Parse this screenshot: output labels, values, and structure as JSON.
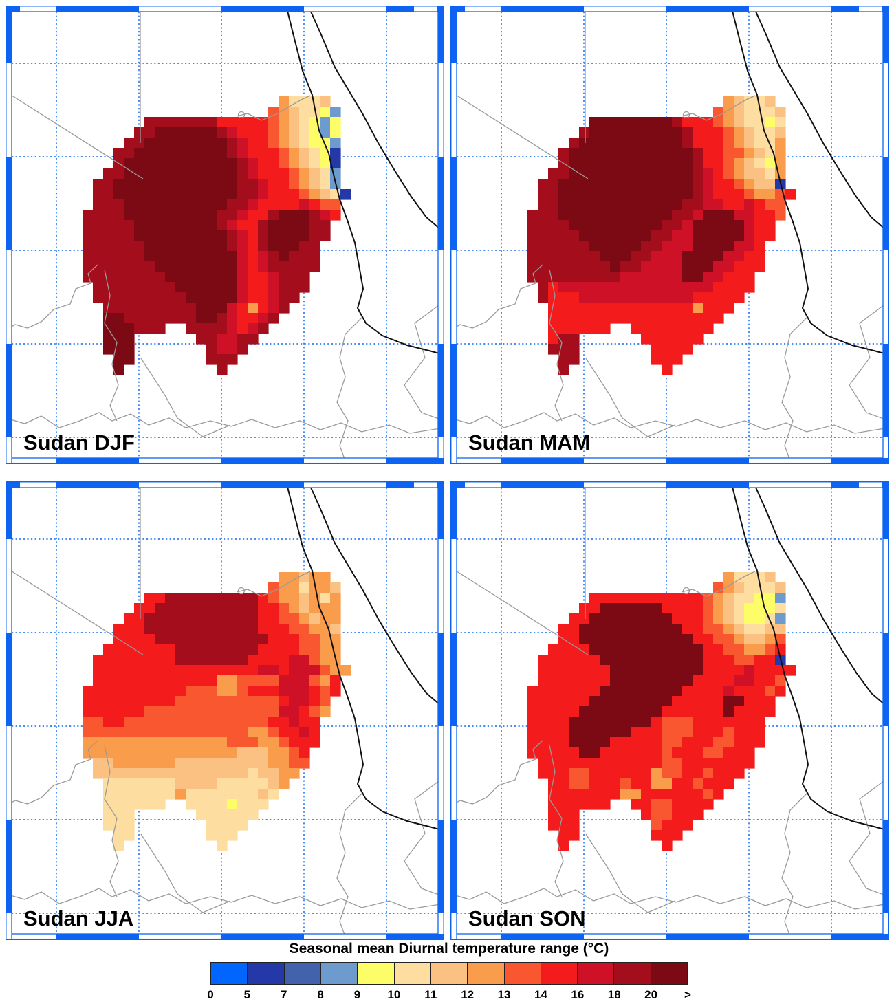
{
  "figure_title": "Seasonal mean Diurnal temperature range (°C)",
  "panels": [
    {
      "id": "djf",
      "label": "Sudan DJF",
      "grid": [
        "...................86667..",
        "..................9876654.",
        "......CCCCCCCAAAAA9876545.",
        ".....CCDDDDDDCBAAA9876545.",
        "....CCDDDDDDDDCBAA9876554.",
        "...CCDDDDDDDDDCBAAA987652.",
        "...CDDDDDDDDDDDCBAA987652.",
        "..CCDDDDDDDDDDDCBAAA98764.",
        ".CCDDDDDDDDDDDDCCBAA98764.",
        ".CCDDDDDDDDDDDDCCBAAA98762",
        ".CCCDDDDDDDDDDCCBAAAABA99.",
        "CCCCDDDDDDDDDCCBAACDDDCBA.",
        "CCCCCDDDDDDDDCBAACDDDDCC..",
        "CCCCCDDDDDDDDDCBACDDDDCC..",
        "CCCCCCDDDDDDDDCBACDDDCC...",
        "CCCCCCDDDDDDDDDBABCDCCC...",
        "CCCCCCCDDDDDDDDBABCCCCC...",
        "CCCCCCCCDDDDDDDBAABCCC....",
        ".CCCCCCCCDDDDDDBAABCCC....",
        ".CCCCCCCCCDDDDDBAABCC.....",
        "..CCCCCCCCCDDDBA8ABC......",
        "..DDCCCCCCCDDCBAABC.......",
        "..DDDCCC..CCCCBABC........",
        "..DDD......CCBBCC.........",
        "..DDD.......CBBC..........",
        "...DD.......CCC...........",
        "...D.........C............"
      ]
    },
    {
      "id": "mam",
      "label": "Sudan MAM",
      "grid": [
        "...................87667..",
        "..................9876667.",
        "......DDDDDDDDCAAA9876656.",
        ".....CDDDDDDDDDCAAA987667.",
        "....CDDDDDDDDDDCAAA987668.",
        "...CDDDDDDDDDDDDCAA998768.",
        "...CDDDDDDDDDDDDCAA987658.",
        "..CCDDDDDDDDDDDDCBA987768.",
        ".CCDDDDDDDDDDDDDCBAA98772.",
        ".CCDDDDDDDDDDDDDCBAAA9889A",
        ".CCDDDDDDDDDDDDCCBBAABA99.",
        "CCCDDDDDDDDDDDCCBDDDBBAA9.",
        "CCCCDDDDDDDDDCCBDDDDDBAA..",
        "CCCCCDDDDDDDCCBBDDDDDBAA..",
        "CCCCCCDDDDDCCBBBDDDDBBA...",
        "CCCCCCCDDDCCBBBDDDDBBAA...",
        "CCCCCCCCDCCBBBBDDDBBAAA...",
        "CCCCCCCCCBBBBBBDDBBAAA....",
        ".CABBBBBBBBBBBBBBBAAAA....",
        ".CAAABBBBBBBBBBBAAAAA.....",
        "..AAAAAAAAAAAAAA8AAA......",
        "..AAAAAAAAAAAAAAAAA.......",
        "..AAAAAA..AAAAAAAA........",
        "..ACC......AAAAAA.........",
        "..CCC.......AAAA..........",
        "...CC.......AAA...........",
        "...C.........A............"
      ]
    },
    {
      "id": "jja",
      "label": "Sudan JJA",
      "grid": [
        "...................88788..",
        "..................9886887.",
        "......AACCCCCCCCCA9887868.",
        ".....AACCCCCCCCCCAA987888.",
        "....AACCCCCCCCCCCAA998788.",
        "...AAACCCCCCCCCCCAAA99887.",
        "...AAAACCCCCCCCCCCAAA9988.",
        "..AAAAAAACCCCCCCCAAAA9988.",
        ".AAAAAAAACCCCCCCAAAABB988.",
        ".AAAAAAAAAAAAAAAABBABBB988",
        ".AAAAAAAAAAAA889999BBB98A.",
        "AAAAAAAAAA999889AAABBBA9A.",
        "AAAAAAAAA9999999999ABBA9..",
        "AAAAAA9999999999999BBA98..",
        "99AA99999999999999AABAA...",
        "9999999999999999889AABA...",
        "88888888888888999889AAA...",
        "888888888888888777889A....",
        ".778888887777777778899....",
        ".77777777777777767788.....",
        "..666666677776666678......",
        "..66666668666666676.......",
        "..666666..66665666........",
        "..666......666666.........",
        "..666.......6666..........",
        "...66.......666...........",
        "...6.........6............"
      ]
    },
    {
      "id": "son",
      "label": "Sudan SON",
      "grid": [
        "...................86667..",
        "..................9876667.",
        "......AAAAAAAAAAA98766554.",
        ".....AADDDDDDAAAA98765556.",
        "....AADDDDDDDDAAA98765564.",
        "...AADDDDDDDDDDAA99876677.",
        "...AADDDDDDDDDDDAA9987789.",
        "..AAAADDDDDDDDDDDAA99889A.",
        ".AAAAAADDDDDDDDDDAAA99AA2.",
        ".AAAAAAADDDDDDDDDAAAABAAAA",
        ".AAAAAAADDDDDDDDAAAABBAA9.",
        "AAAAAAADDDDDDDDAAAABAAA9A.",
        "AAAAAADDDDDDDDAAAAADDAAA..",
        "AAAAADDDDDDDDAAAAAADAAAA..",
        "AAAADDDDDDDDA999AAAAAAA...",
        "AAAADDDDDDAAA999AAA9AAA...",
        "AAAADDDDAAAAA99AAA99AAA...",
        "AAAAADDAAAAAA9AAA99AAA....",
        ".AAAAAAAAAAAA99AAAAAAA....",
        ".AAA99AAAAAA899AA9AAA.....",
        "..AA99AAA9AA88AA9AAA......",
        "..AAAAAAA88AAAAAA9A.......",
        "..AAAAAA..AA99AAAA........",
        "..AAA......A99AAA.........",
        "..AAA.......9AAA..........",
        "...AA.......AAA...........",
        "...A.........A............"
      ]
    }
  ],
  "palette": {
    "1": "#0066FE",
    "2": "#2438A8",
    "3": "#4263AC",
    "4": "#6E9BCD",
    "5": "#FDFD68",
    "6": "#FDDDA0",
    "7": "#FBC183",
    "8": "#F99C4C",
    "9": "#F9572F",
    "A": "#F31B1C",
    "B": "#CE1126",
    "C": "#A30D1C",
    "D": "#7C0A14"
  },
  "colorbar": {
    "tick_labels": [
      "0",
      "5",
      "7",
      "8",
      "9",
      "10",
      "11",
      "12",
      "13",
      "14",
      "16",
      "18",
      "20",
      ">"
    ],
    "colors": [
      "#0066FE",
      "#2438A8",
      "#4263AC",
      "#6E9BCD",
      "#FDFD68",
      "#FDDDA0",
      "#FBC183",
      "#F99C4C",
      "#F9572F",
      "#F31B1C",
      "#CE1126",
      "#A30D1C",
      "#7C0A14"
    ]
  },
  "frame_color": "#0D63F2",
  "chart_data": {
    "type": "heatmap",
    "title": "Seasonal mean Diurnal temperature range (°C)",
    "region": "Sudan",
    "units": "°C",
    "seasons": [
      "DJF",
      "MAM",
      "JJA",
      "SON"
    ],
    "colorbar_levels": [
      0,
      5,
      7,
      8,
      9,
      10,
      11,
      12,
      13,
      14,
      16,
      18,
      20
    ],
    "colorbar_colors": [
      "#0066FE",
      "#2438A8",
      "#4263AC",
      "#6E9BCD",
      "#FDFD68",
      "#FDDDA0",
      "#FBC183",
      "#F99C4C",
      "#F9572F",
      "#F31B1C",
      "#CE1126",
      "#A30D1C",
      "#7C0A14"
    ],
    "grid_encoding": "Each panel grid has 27 rows x 26 cols of character-coded bins: 1=0-5, 2=5-7, 3=7-8, 4=8-9, 5=9-10, 6=10-11, 7=11-12, 8=12-13, 9=13-14, A=14-16, B=16-18, C=18-20, D=>20, .=no data",
    "summary": {
      "DJF": "Most of Sudan 18-20; >20 cores in west-center, east-center and southwest tip; 14-16 streaks; NE Red Sea coastal strip falls through 13-9 to 0-9 (blue cells on coast).",
      "MAM": "Large >20 core over northwest and center; 18-20 around it; 14-16 band along the south; coastal strip 12-9 with yellow 9-10 cells and one 5-7 blue cell.",
      "JJA": "18-20 core in the north surrounded by 14-16; values decrease southward through 13-14, 12-13, 11-12 to 10-11 in the far south (one 9-10 cell); 16-18 along NE border, coast 12-13.",
      "SON": "Mostly 14-16 with an 18->20 diagonal core from northwest to center; small >20 spot in east; 12-14 patches in south; coastal strip 12-9 with 9-10 yellow patch and isolated blue cells."
    }
  }
}
